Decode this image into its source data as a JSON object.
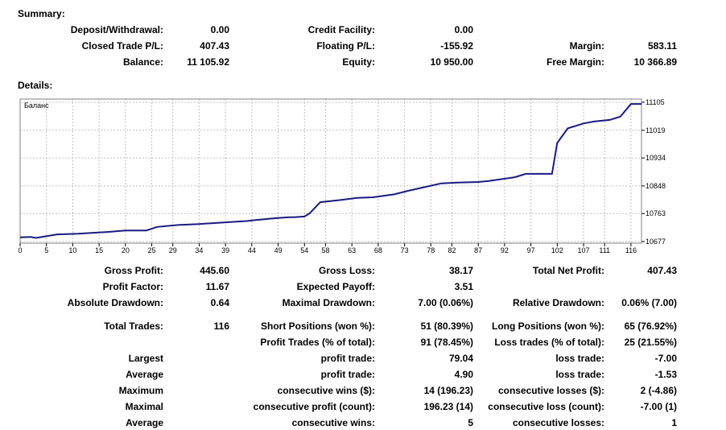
{
  "summary_title": "Summary:",
  "summary": {
    "deposit_label": "Deposit/Withdrawal:",
    "deposit_value": "0.00",
    "credit_label": "Credit Facility:",
    "credit_value": "0.00",
    "closed_label": "Closed Trade P/L:",
    "closed_value": "407.43",
    "floating_label": "Floating P/L:",
    "floating_value": "-155.92",
    "margin_label": "Margin:",
    "margin_value": "583.11",
    "balance_label": "Balance:",
    "balance_value": "11 105.92",
    "equity_label": "Equity:",
    "equity_value": "10 950.00",
    "free_margin_label": "Free Margin:",
    "free_margin_value": "10 366.89"
  },
  "details_title": "Details:",
  "chart_data": {
    "type": "line",
    "title": "Баланс",
    "xlabel": "",
    "ylabel": "",
    "x_ticks": [
      "0",
      "5",
      "10",
      "15",
      "20",
      "25",
      "29",
      "34",
      "39",
      "44",
      "49",
      "54",
      "58",
      "63",
      "68",
      "73",
      "78",
      "82",
      "87",
      "92",
      "97",
      "102",
      "107",
      "111",
      "116"
    ],
    "y_ticks": [
      "11105",
      "11019",
      "10934",
      "10848",
      "10763",
      "10677"
    ],
    "xlim": [
      0,
      118
    ],
    "ylim": [
      10672,
      11115
    ],
    "line_color": "#1a1a80",
    "series": [
      {
        "name": "Баланс",
        "x": [
          0,
          2,
          3,
          7,
          11,
          17,
          20,
          24,
          26,
          30,
          34,
          36,
          43,
          44,
          48,
          51,
          52,
          54,
          55,
          57,
          61,
          64,
          67,
          71,
          74,
          80,
          83,
          87,
          89,
          94,
          96,
          101,
          102,
          104,
          107,
          109,
          112,
          114,
          116,
          118
        ],
        "y": [
          10690,
          10691,
          10688,
          10699,
          10701,
          10707,
          10711,
          10711,
          10722,
          10728,
          10731,
          10733,
          10740,
          10742,
          10748,
          10752,
          10752,
          10754,
          10764,
          10798,
          10805,
          10811,
          10813,
          10822,
          10834,
          10856,
          10858,
          10860,
          10863,
          10875,
          10885,
          10885,
          10980,
          11025,
          11040,
          11046,
          11051,
          11061,
          11100,
          11100
        ]
      }
    ]
  },
  "details": {
    "gross_profit_label": "Gross Profit:",
    "gross_profit_value": "445.60",
    "gross_loss_label": "Gross Loss:",
    "gross_loss_value": "38.17",
    "total_net_profit_label": "Total Net Profit:",
    "total_net_profit_value": "407.43",
    "profit_factor_label": "Profit Factor:",
    "profit_factor_value": "11.67",
    "expected_payoff_label": "Expected Payoff:",
    "expected_payoff_value": "3.51",
    "absolute_dd_label": "Absolute Drawdown:",
    "absolute_dd_value": "0.64",
    "maximal_dd_label": "Maximal Drawdown:",
    "maximal_dd_value": "7.00 (0.06%)",
    "relative_dd_label": "Relative Drawdown:",
    "relative_dd_value": "0.06% (7.00)",
    "total_trades_label": "Total Trades:",
    "total_trades_value": "116",
    "short_pos_label": "Short Positions (won %):",
    "short_pos_value": "51 (80.39%)",
    "long_pos_label": "Long Positions (won %):",
    "long_pos_value": "65 (76.92%)",
    "profit_trades_label": "Profit Trades (% of total):",
    "profit_trades_value": "91 (78.45%)",
    "loss_trades_label": "Loss trades (% of total):",
    "loss_trades_value": "25 (21.55%)",
    "largest_label": "Largest",
    "largest_profit_label": "profit trade:",
    "largest_profit_value": "79.04",
    "largest_loss_label": "loss trade:",
    "largest_loss_value": "-7.00",
    "average_label": "Average",
    "average_profit_label": "profit trade:",
    "average_profit_value": "4.90",
    "average_loss_label": "loss trade:",
    "average_loss_value": "-1.53",
    "maximum_label": "Maximum",
    "max_cons_wins_label": "consecutive wins ($):",
    "max_cons_wins_value": "14 (196.23)",
    "max_cons_losses_label": "consecutive losses ($):",
    "max_cons_losses_value": "2 (-4.86)",
    "maximal_label": "Maximal",
    "maximal_cons_profit_label": "consecutive profit (count):",
    "maximal_cons_profit_value": "196.23 (14)",
    "maximal_cons_loss_label": "consecutive loss (count):",
    "maximal_cons_loss_value": "-7.00 (1)",
    "average2_label": "Average",
    "avg_cons_wins_label": "consecutive wins:",
    "avg_cons_wins_value": "5",
    "avg_cons_losses_label": "consecutive losses:",
    "avg_cons_losses_value": "1"
  }
}
